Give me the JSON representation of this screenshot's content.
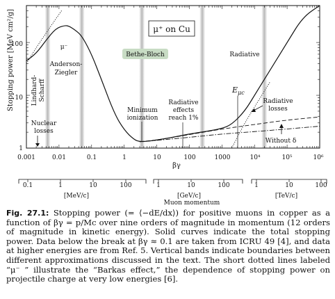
{
  "figure": {
    "y_axis_label": "Stopping power [MeV cm²/g]",
    "x_axis_label": "βγ",
    "muon_momentum_label": "Muon momentum",
    "material_box": "μ⁺ on Cu",
    "bethe_bloch_label": "Bethe-Bloch",
    "region_labels": {
      "radiative": "Radiative",
      "anderson_ziegler_1": "Anderson-",
      "anderson_ziegler_2": "Ziegler",
      "lindhard_1": "Lindhard-",
      "lindhard_2": "Scharff",
      "mu_minus": "μ⁻",
      "nuclear_1": "Nuclear",
      "nuclear_2": "losses",
      "min_ion_1": "Minimum",
      "min_ion_2": "ionization",
      "rad_eff_1": "Radiative",
      "rad_eff_2": "effects",
      "rad_eff_3": "reach 1%",
      "rad_losses_1": "Radiative",
      "rad_losses_2": "losses",
      "emu": "E",
      "emu_sub": "μc",
      "without_delta": "Without δ"
    },
    "y_ticks": [
      "1",
      "10",
      "100"
    ],
    "x_ticks": [
      "0.001",
      "0.01",
      "0.1",
      "1",
      "10",
      "100",
      "1000",
      "10⁴",
      "10⁵",
      "10⁶"
    ],
    "momentum_scales": [
      {
        "ticks": [
          "0.1",
          "1",
          "10",
          "100"
        ],
        "unit": "[MeV/c]"
      },
      {
        "ticks": [
          "1",
          "10",
          "100"
        ],
        "unit": "[GeV/c]"
      },
      {
        "ticks": [
          "1",
          "10",
          "100"
        ],
        "unit": "[TeV/c]"
      }
    ]
  },
  "chart_data": {
    "type": "line",
    "x_scale": "log",
    "y_scale": "log",
    "xlim": [
      0.001,
      1000000
    ],
    "ylim": [
      1,
      500
    ],
    "xlabel": "βγ",
    "ylabel": "Stopping power [MeV cm²/g]",
    "series": [
      {
        "style": "solid",
        "x": [
          0.001,
          0.002,
          0.004,
          0.008,
          0.015,
          0.02,
          0.03,
          0.05,
          0.1,
          0.2,
          0.5,
          1,
          2,
          3,
          5,
          10,
          30,
          100,
          300,
          1000,
          2000,
          5000,
          10000,
          30000,
          100000,
          300000,
          1000000
        ],
        "y": [
          45,
          62,
          110,
          185,
          210,
          205,
          175,
          135,
          60,
          20,
          4.5,
          2.2,
          1.45,
          1.32,
          1.35,
          1.42,
          1.6,
          1.85,
          2.05,
          2.35,
          2.8,
          5,
          10,
          30,
          100,
          300,
          700
        ]
      },
      {
        "style": "dashed",
        "x": [
          3,
          10,
          100,
          1000,
          10000,
          100000,
          1000000
        ],
        "y": [
          1.32,
          1.42,
          1.8,
          2.3,
          2.8,
          3.4,
          3.9
        ]
      },
      {
        "style": "dash-dot",
        "x": [
          3,
          10,
          100,
          1000,
          10000,
          100000,
          1000000
        ],
        "y": [
          1.32,
          1.4,
          1.6,
          1.85,
          2.05,
          2.3,
          2.6
        ]
      },
      {
        "style": "dotted",
        "x": [
          0.001,
          0.002,
          0.004,
          0.008,
          0.012
        ],
        "y": [
          40,
          80,
          150,
          280,
          400
        ]
      },
      {
        "style": "dotted",
        "x": [
          2000,
          5000,
          10000,
          30000
        ],
        "y": [
          1,
          3,
          6,
          18
        ]
      }
    ],
    "vertical_bands": [
      0.0045,
      0.05,
      3.5,
      250,
      20000
    ]
  },
  "caption": {
    "label": "Fig. 27.1:",
    "text": "Stopping power (= ⟨−dE/dx⟩) for positive muons in copper as a function of βγ = p/Mc over nine orders of magnitude in momentum (12 orders of magnitude in kinetic energy). Solid curves indicate the total stopping power. Data below the break at βγ ≈ 0.1 are taken from ICRU 49 [4], and data at higher energies are from Ref. 5. Vertical bands indicate boundaries between different approximations discussed in the text. The short dotted lines labeled “μ⁻ ” illustrate the “Barkas effect,” the dependence of stopping power on projectile charge at very low energies [6]."
  }
}
